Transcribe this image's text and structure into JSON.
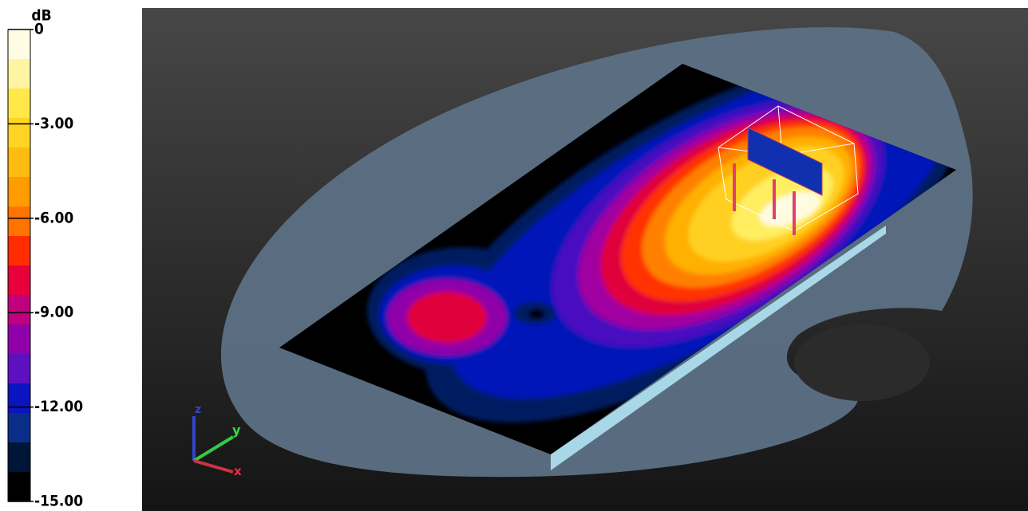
{
  "colorbar": {
    "unit": "dB",
    "ticks": [
      {
        "value": 0,
        "label": "0"
      },
      {
        "value": -3,
        "label": "-3.00"
      },
      {
        "value": -6,
        "label": "-6.00"
      },
      {
        "value": -9,
        "label": "-9.00"
      },
      {
        "value": -12,
        "label": "-12.00"
      },
      {
        "value": -15,
        "label": "-15.00"
      }
    ]
  },
  "axes": {
    "z": "z",
    "y": "y",
    "x": "x"
  }
}
